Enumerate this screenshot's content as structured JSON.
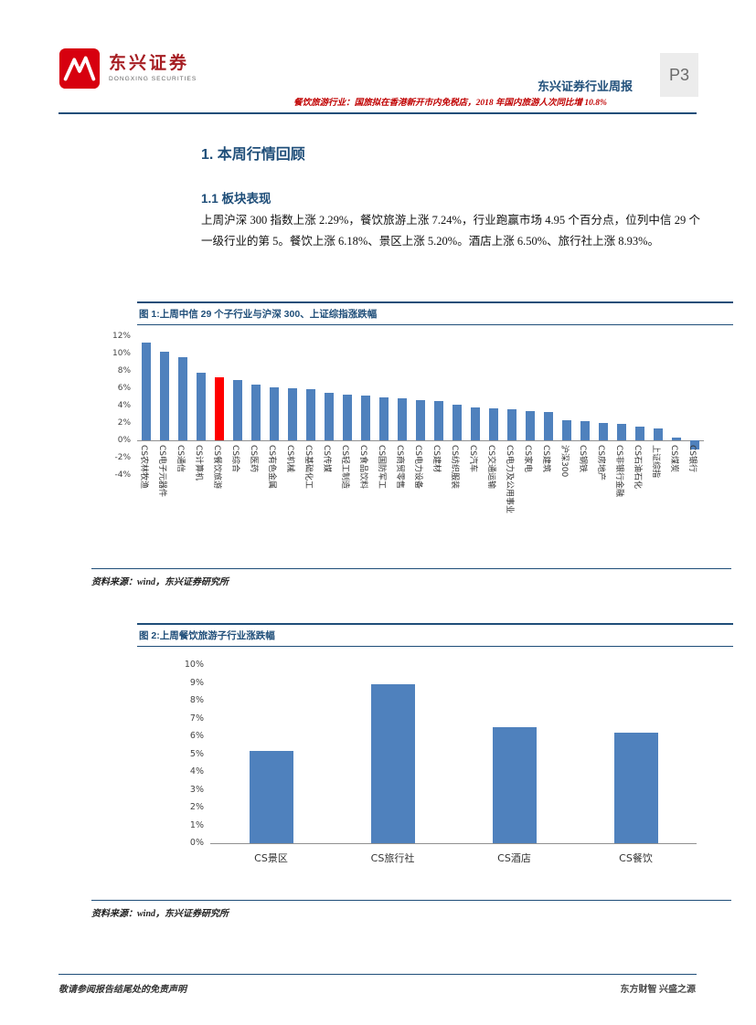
{
  "theme": {
    "accent_blue": "#1f4e79",
    "red_text": "#c00000",
    "logo_red": "#d7000f",
    "bar_blue": "#4f81bd",
    "highlight_red": "#ff0000"
  },
  "header": {
    "logo_cn": "东兴证券",
    "logo_en": "DONGXING SECURITIES",
    "report_type": "东兴证券行业周报",
    "page_no": "P3",
    "subtitle": "餐饮旅游行业：国旅拟在香港新开市内免税店，2018 年国内旅游人次同比增 10.8%"
  },
  "section": {
    "heading1": "1. 本周行情回顾",
    "heading2": "1.1 板块表现",
    "paragraph": "上周沪深 300 指数上涨 2.29%，餐饮旅游上涨 7.24%，行业跑赢市场 4.95 个百分点，位列中信 29 个一级行业的第 5。餐饮上涨 6.18%、景区上涨 5.20%。酒店上涨 6.50%、旅行社上涨 8.93%。"
  },
  "figure1": {
    "title": "图 1:上周中信 29 个子行业与沪深 300、上证综指涨跌幅",
    "source": "资料来源：wind，东兴证券研究所"
  },
  "figure2": {
    "title": "图 2:上周餐饮旅游子行业涨跌幅",
    "source": "资料来源：wind，东兴证券研究所"
  },
  "footer": {
    "left": "敬请参阅报告结尾处的免责声明",
    "right": "东方财智 兴盛之源"
  },
  "chart_data": [
    {
      "type": "bar",
      "title": "上周中信29个子行业与沪深300、上证综指涨跌幅",
      "categories": [
        "CS农林牧渔",
        "CS电子元器件",
        "CS通信",
        "CS计算机",
        "CS餐饮旅游",
        "CS综合",
        "CS医药",
        "CS有色金属",
        "CS机械",
        "CS基础化工",
        "CS传媒",
        "CS轻工制造",
        "CS食品饮料",
        "CS国防军工",
        "CS商贸零售",
        "CS电力设备",
        "CS建材",
        "CS纺织服装",
        "CS汽车",
        "CS交通运输",
        "CS电力及公用事业",
        "CS家电",
        "CS建筑",
        "沪深300",
        "CS钢铁",
        "CS房地产",
        "CS非银行金融",
        "CS石油石化",
        "上证综指",
        "CS煤炭",
        "CS银行"
      ],
      "values": [
        11.3,
        10.2,
        9.6,
        7.8,
        7.24,
        7.0,
        6.4,
        6.1,
        6.0,
        5.9,
        5.5,
        5.3,
        5.2,
        5.0,
        4.8,
        4.6,
        4.5,
        4.1,
        3.8,
        3.7,
        3.6,
        3.4,
        3.3,
        2.29,
        2.2,
        2.0,
        1.9,
        1.6,
        1.4,
        0.3,
        -1.0
      ],
      "bar_color": "#4f81bd",
      "highlight_category": "CS餐饮旅游",
      "highlight_color": "#ff0000",
      "ylim": [
        -4,
        12
      ],
      "yticks": [
        "12%",
        "10%",
        "8%",
        "6%",
        "4%",
        "2%",
        "0%",
        "-2%",
        "-4%"
      ],
      "grid": false,
      "legend": "none"
    },
    {
      "type": "bar",
      "title": "上周餐饮旅游子行业涨跌幅",
      "categories": [
        "CS景区",
        "CS旅行社",
        "CS酒店",
        "CS餐饮"
      ],
      "values": [
        5.2,
        8.93,
        6.5,
        6.18
      ],
      "bar_color": "#4f81bd",
      "ylim": [
        0,
        10
      ],
      "yticks": [
        "10%",
        "9%",
        "8%",
        "7%",
        "6%",
        "5%",
        "4%",
        "3%",
        "2%",
        "1%",
        "0%"
      ],
      "grid": false,
      "legend": "none"
    }
  ]
}
